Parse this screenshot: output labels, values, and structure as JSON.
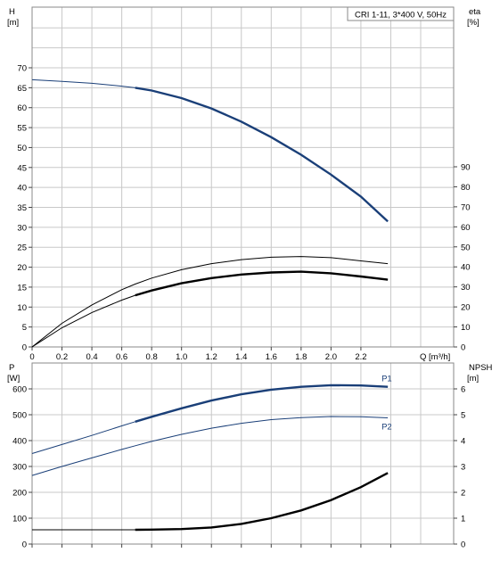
{
  "chart_data": [
    {
      "type": "line",
      "title": "CRI 1-11, 3*400 V, 50Hz",
      "xlabel": "Q [m³/h]",
      "ylabel_left": [
        "H",
        "[m]"
      ],
      "ylabel_right": [
        "eta",
        "[%]"
      ],
      "xlim": [
        0,
        2.6
      ],
      "ylim_left": [
        0,
        80
      ],
      "ylim_right": [
        0,
        100
      ],
      "x_ticks": [
        "0",
        "0.2",
        "0.4",
        "0.6",
        "0.8",
        "1.0",
        "1.2",
        "1.4",
        "1.6",
        "1.8",
        "2.0",
        "2.2"
      ],
      "y_ticks_left": [
        "0",
        "5",
        "10",
        "15",
        "20",
        "25",
        "30",
        "35",
        "40",
        "45",
        "50",
        "55",
        "60",
        "65",
        "70"
      ],
      "y_ticks_right": [
        "0",
        "10",
        "20",
        "30",
        "40",
        "50",
        "60",
        "70",
        "80",
        "90"
      ],
      "grid": true,
      "series": [
        {
          "axis": "left",
          "color": "#1a3f78",
          "x": [
            0,
            0.2,
            0.4,
            0.6,
            0.69,
            0.8,
            1.0,
            1.2,
            1.4,
            1.6,
            1.8,
            2.0,
            2.2,
            2.38
          ],
          "values": [
            67,
            66.6,
            66.1,
            65.4,
            65,
            64.3,
            62.4,
            59.8,
            56.5,
            52.6,
            48.2,
            43.2,
            37.7,
            31.5
          ],
          "bold_from": 0.69
        },
        {
          "axis": "right",
          "color": "#000000",
          "x": [
            0,
            0.2,
            0.4,
            0.6,
            0.69,
            0.8,
            1.0,
            1.2,
            1.4,
            1.6,
            1.8,
            2.0,
            2.2,
            2.38
          ],
          "values": [
            0,
            11.8,
            21,
            28.6,
            31.4,
            34.4,
            38.6,
            41.6,
            43.6,
            44.8,
            45.2,
            44.6,
            43,
            41.6
          ]
        },
        {
          "axis": "right",
          "color": "#000000",
          "x": [
            0,
            0.2,
            0.4,
            0.6,
            0.69,
            0.8,
            1.0,
            1.2,
            1.4,
            1.6,
            1.8,
            2.0,
            2.2,
            2.38
          ],
          "values": [
            0,
            9.6,
            17.2,
            23.4,
            25.8,
            28.2,
            31.8,
            34.4,
            36.2,
            37.2,
            37.6,
            36.8,
            35.2,
            33.6
          ],
          "bold_from": 0.69
        }
      ]
    },
    {
      "type": "line",
      "xlim": [
        0,
        2.6
      ],
      "ylabel_left": [
        "P",
        "[W]"
      ],
      "ylabel_right": [
        "NPSH",
        "[m]"
      ],
      "ylim_left": [
        0,
        700
      ],
      "ylim_right": [
        0,
        7
      ],
      "y_ticks_left": [
        "0",
        "100",
        "200",
        "300",
        "400",
        "500",
        "600"
      ],
      "y_ticks_right": [
        "0",
        "1",
        "2",
        "3",
        "4",
        "5",
        "6"
      ],
      "grid": true,
      "series": [
        {
          "name": "P1",
          "axis": "left",
          "color": "#1a3f78",
          "x": [
            0,
            0.2,
            0.4,
            0.6,
            0.69,
            0.8,
            1.0,
            1.2,
            1.4,
            1.6,
            1.8,
            2.0,
            2.2,
            2.38
          ],
          "values": [
            350,
            385,
            420,
            457,
            473,
            492,
            525,
            555,
            579,
            597,
            608,
            614,
            613,
            608
          ],
          "bold_from": 0.69
        },
        {
          "name": "P2",
          "axis": "left",
          "color": "#1a3f78",
          "x": [
            0,
            0.2,
            0.4,
            0.6,
            0.69,
            0.8,
            1.0,
            1.2,
            1.4,
            1.6,
            1.8,
            2.0,
            2.2,
            2.38
          ],
          "values": [
            265,
            300,
            333,
            366,
            380,
            397,
            424,
            448,
            467,
            481,
            489,
            493,
            492,
            488
          ]
        },
        {
          "axis": "right",
          "color": "#000000",
          "x": [
            0,
            0.2,
            0.4,
            0.6,
            0.69,
            0.8,
            1.0,
            1.2,
            1.4,
            1.6,
            1.8,
            2.0,
            2.2,
            2.38
          ],
          "values": [
            0.55,
            0.55,
            0.55,
            0.55,
            0.55,
            0.56,
            0.58,
            0.64,
            0.78,
            1.0,
            1.3,
            1.7,
            2.2,
            2.75
          ],
          "bold_from": 0.69
        }
      ]
    }
  ]
}
